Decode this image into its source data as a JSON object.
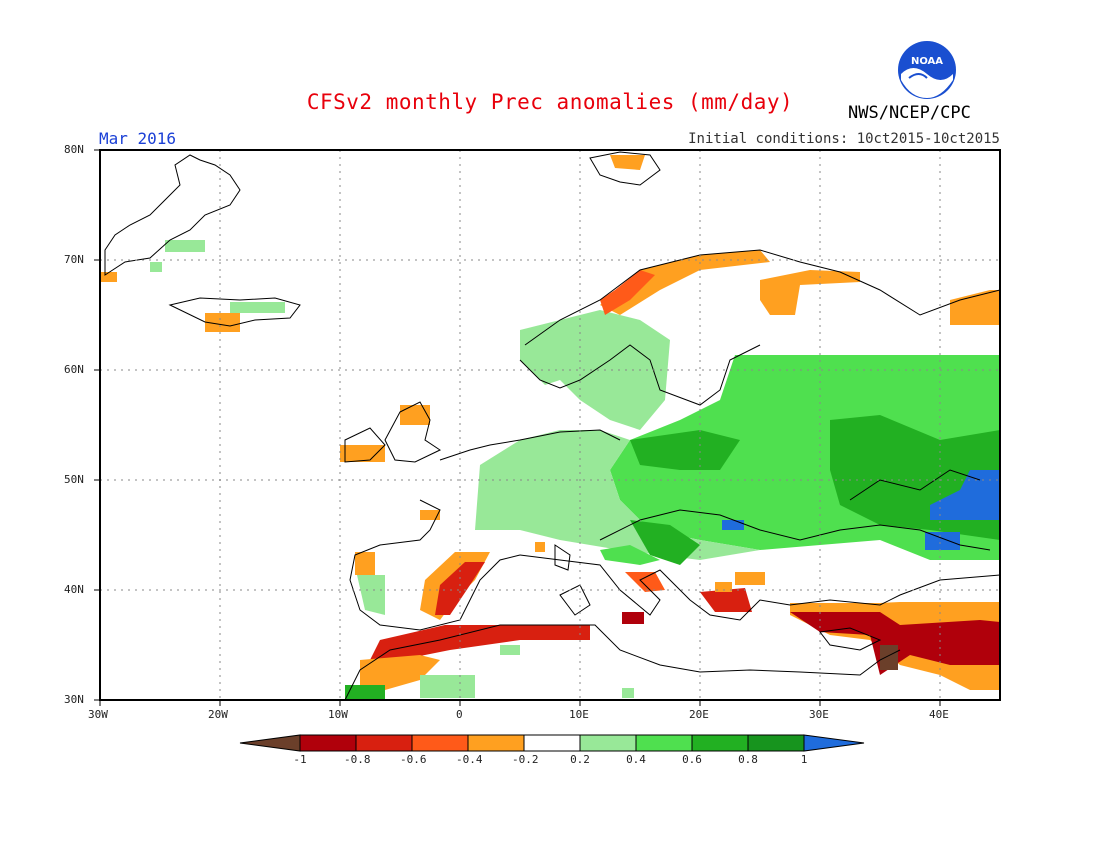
{
  "title": "CFSv2 monthly Prec anomalies (mm/day)",
  "month": "Mar 2016",
  "initial_conditions": "Initial conditions: 10ct2015-10ct2015",
  "agency": "NWS/NCEP/CPC",
  "logo_text": "NOAA",
  "map": {
    "lon_range": [
      -30,
      45
    ],
    "lat_range": [
      30,
      80
    ],
    "grid_on": true,
    "lat_labels": [
      "80N",
      "70N",
      "60N",
      "50N",
      "40N",
      "30N"
    ],
    "lon_labels": [
      "30W",
      "20W",
      "10W",
      "0",
      "10E",
      "20E",
      "30E",
      "40E"
    ]
  },
  "colorbar": {
    "labels": [
      "-1",
      "-0.8",
      "-0.6",
      "-0.4",
      "-0.2",
      "0.2",
      "0.4",
      "0.6",
      "0.8",
      "1"
    ],
    "colors": [
      "#6b3f2a",
      "#b0000b",
      "#d82010",
      "#ff5a19",
      "#ffa020",
      "#ffffff",
      "#98e898",
      "#4fe04f",
      "#22b022",
      "#17941e",
      "#1f6cdc"
    ]
  },
  "colors": {
    "light_green": "#98e898",
    "green": "#4fe04f",
    "mid_green": "#22b022",
    "dark_green": "#17941e",
    "blue": "#1f6cdc",
    "orange": "#ffa020",
    "red_orange": "#ff5a19",
    "red": "#d82010",
    "dark_red": "#b0000b",
    "brown": "#6b3f2a"
  }
}
